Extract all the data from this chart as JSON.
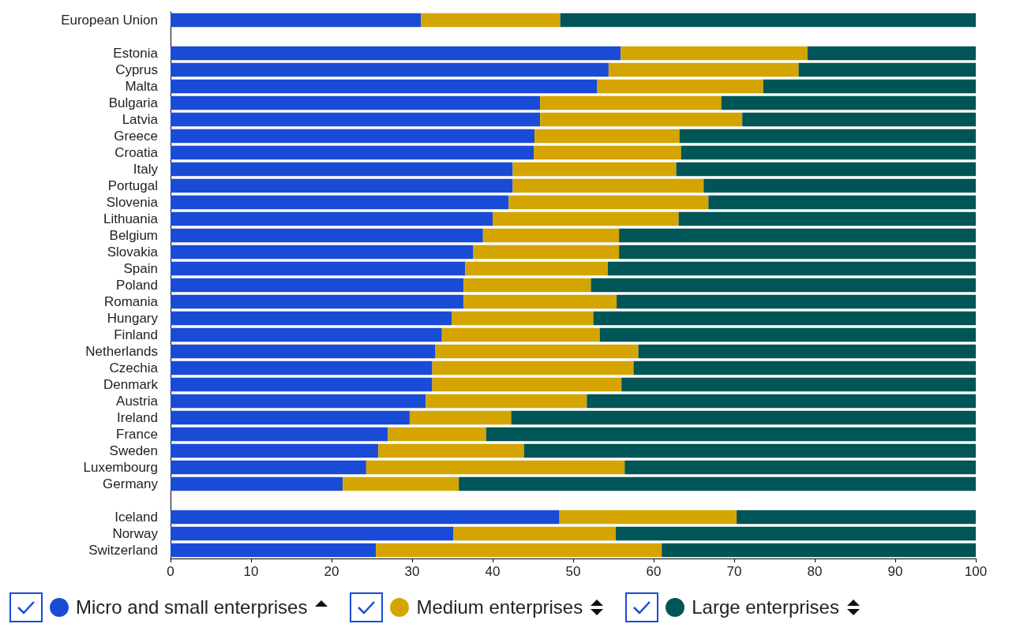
{
  "chart_data": {
    "type": "bar",
    "orientation": "horizontal",
    "stacked": true,
    "categories": [
      "European Union",
      null,
      "Estonia",
      "Cyprus",
      "Malta",
      "Bulgaria",
      "Latvia",
      "Greece",
      "Croatia",
      "Italy",
      "Portugal",
      "Slovenia",
      "Lithuania",
      "Belgium",
      "Slovakia",
      "Spain",
      "Poland",
      "Romania",
      "Hungary",
      "Finland",
      "Netherlands",
      "Czechia",
      "Denmark",
      "Austria",
      "Ireland",
      "France",
      "Sweden",
      "Luxembourg",
      "Germany",
      null,
      "Iceland",
      "Norway",
      "Switzerland"
    ],
    "series": [
      {
        "name": "Micro and small enterprises",
        "color": "#1a4bd6",
        "values": [
          31.1,
          null,
          55.9,
          54.4,
          53.0,
          45.9,
          45.9,
          45.2,
          45.1,
          42.5,
          42.5,
          42.0,
          40.0,
          38.8,
          37.6,
          36.6,
          36.4,
          36.4,
          34.9,
          33.7,
          32.9,
          32.5,
          32.5,
          31.7,
          29.7,
          27.0,
          25.8,
          24.3,
          21.4,
          null,
          48.3,
          35.1,
          25.5
        ]
      },
      {
        "name": "Medium enterprises",
        "color": "#d4a500",
        "values": [
          17.3,
          null,
          23.2,
          23.6,
          20.6,
          22.5,
          25.1,
          18.0,
          18.3,
          20.3,
          23.7,
          24.8,
          23.1,
          16.9,
          18.1,
          17.7,
          15.8,
          19.0,
          17.6,
          19.6,
          25.2,
          25.0,
          23.5,
          20.0,
          12.6,
          12.2,
          18.1,
          32.1,
          14.4,
          null,
          22.0,
          20.2,
          35.5
        ]
      },
      {
        "name": "Large enterprises",
        "color": "#005557",
        "values": [
          51.6,
          null,
          20.9,
          22.0,
          26.4,
          31.6,
          29.0,
          36.8,
          36.6,
          37.2,
          33.8,
          33.2,
          36.9,
          44.3,
          44.3,
          45.7,
          47.8,
          44.6,
          47.5,
          46.7,
          41.9,
          42.5,
          44.0,
          48.3,
          57.7,
          60.8,
          56.1,
          43.6,
          64.2,
          null,
          29.7,
          44.7,
          39.0
        ]
      }
    ],
    "xlim": [
      0,
      100
    ],
    "xticks": [
      0,
      10,
      20,
      30,
      40,
      50,
      60,
      70,
      80,
      90,
      100
    ],
    "grid": false,
    "legend": "bottom"
  }
}
